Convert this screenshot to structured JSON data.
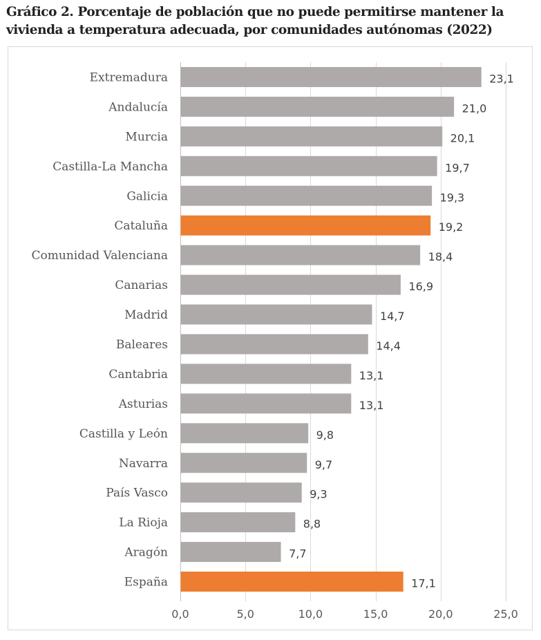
{
  "chart_data": {
    "type": "bar",
    "orientation": "horizontal",
    "title": "Gráfico 2. Porcentaje de población que no puede permitirse mantener la vivienda a temperatura adecuada, por comunidades autónomas (2022)",
    "title_lines": [
      "Gráfico 2. Porcentaje de población que no puede permitirse mantener la",
      "vivienda a temperatura adecuada, por comunidades autónomas (2022)"
    ],
    "categories": [
      "Extremadura",
      "Andalucía",
      "Murcia",
      "Castilla-La Mancha",
      "Galicia",
      "Cataluña",
      "Comunidad Valenciana",
      "Canarias",
      "Madrid",
      "Baleares",
      "Cantabria",
      "Asturias",
      "Castilla y León",
      "Navarra",
      "País Vasco",
      "La Rioja",
      "Aragón",
      "España"
    ],
    "values": [
      23.1,
      21.0,
      20.1,
      19.7,
      19.3,
      19.2,
      18.4,
      16.9,
      14.7,
      14.4,
      13.1,
      13.1,
      9.8,
      9.7,
      9.3,
      8.8,
      7.7,
      17.1
    ],
    "value_labels": [
      "23,1",
      "21,0",
      "20,1",
      "19,7",
      "19,3",
      "19,2",
      "18,4",
      "16,9",
      "14,7",
      "14,4",
      "13,1",
      "13,1",
      "9,8",
      "9,7",
      "9,3",
      "8,8",
      "7,7",
      "17,1"
    ],
    "highlighted": [
      "Cataluña",
      "España"
    ],
    "xlim": [
      0,
      25
    ],
    "xticks": [
      0,
      5,
      10,
      15,
      20,
      25
    ],
    "xtick_labels": [
      "0,0",
      "5,0",
      "10,0",
      "15,0",
      "20,0",
      "25,0"
    ],
    "xlabel": "",
    "ylabel": "",
    "grid": true,
    "legend": "none",
    "colors": {
      "default": "#aeaaaa",
      "highlight": "#ed7d31",
      "grid": "#d9d9d9"
    }
  }
}
